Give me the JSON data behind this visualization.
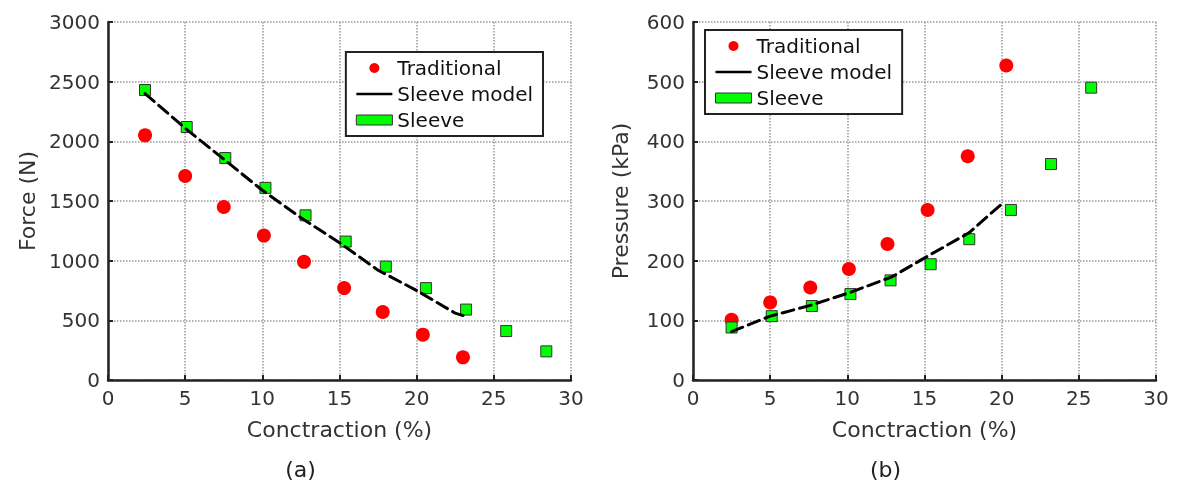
{
  "chart_data": [
    {
      "type": "scatter",
      "xlabel": "Conctraction (%)",
      "ylabel": "Force (N)",
      "annotations": [
        "(a)"
      ],
      "xlim": [
        0,
        30
      ],
      "xticks": [
        0,
        5,
        10,
        15,
        20,
        25,
        30
      ],
      "ylim": [
        0,
        3000
      ],
      "yticks": [
        0,
        500,
        1000,
        1500,
        2000,
        2500,
        3000
      ],
      "grid": true,
      "legend": "top right",
      "series": [
        {
          "name": "Traditional",
          "marker": "circle",
          "color": "#ff0000",
          "x": [
            2.4,
            5.0,
            7.5,
            10.1,
            12.7,
            15.3,
            17.8,
            20.4,
            23.0
          ],
          "values": [
            2050,
            1710,
            1450,
            1210,
            990,
            770,
            570,
            380,
            190
          ]
        },
        {
          "name": "Sleeve model",
          "type": "line",
          "marker": "none",
          "line_style": "dashed",
          "color": "#000000",
          "x": [
            2.4,
            5,
            7.5,
            10,
            12.5,
            15,
            17.5,
            20,
            22.5,
            23
          ],
          "values": [
            2400,
            2110,
            1850,
            1590,
            1360,
            1150,
            920,
            750,
            560,
            540
          ]
        },
        {
          "name": "Sleeve",
          "marker": "square",
          "color": "#00ff00",
          "x": [
            2.4,
            5.1,
            7.6,
            10.2,
            12.8,
            15.4,
            18.0,
            20.6,
            23.2,
            25.8,
            28.4
          ],
          "values": [
            2430,
            2120,
            1860,
            1610,
            1380,
            1160,
            950,
            770,
            590,
            410,
            240
          ]
        }
      ]
    },
    {
      "type": "scatter",
      "xlabel": "Conctraction (%)",
      "ylabel": "Pressure (kPa)",
      "annotations": [
        "(b)"
      ],
      "xlim": [
        0,
        30
      ],
      "xticks": [
        0,
        5,
        10,
        15,
        20,
        25,
        30
      ],
      "ylim": [
        0,
        600
      ],
      "yticks": [
        0,
        100,
        200,
        300,
        400,
        500,
        600
      ],
      "grid": true,
      "legend": "top left",
      "series": [
        {
          "name": "Traditional",
          "marker": "circle",
          "color": "#ff0000",
          "x": [
            2.5,
            5.0,
            7.6,
            10.1,
            12.6,
            15.2,
            17.8,
            20.3
          ],
          "values": [
            101,
            130,
            155,
            186,
            228,
            285,
            375,
            527
          ]
        },
        {
          "name": "Sleeve model",
          "type": "line",
          "marker": "none",
          "line_style": "dashed",
          "color": "#000000",
          "x": [
            2.5,
            5,
            7.6,
            10.1,
            12.9,
            15.1,
            17.9,
            20.0
          ],
          "values": [
            81,
            107,
            125,
            146,
            173,
            206,
            247,
            295
          ]
        },
        {
          "name": "Sleeve",
          "marker": "square",
          "color": "#00ff00",
          "x": [
            2.5,
            5.1,
            7.7,
            10.2,
            12.8,
            15.4,
            17.9,
            20.6,
            23.2,
            25.8
          ],
          "values": [
            88,
            107,
            124,
            144,
            167,
            194,
            236,
            285,
            362,
            490
          ]
        }
      ]
    }
  ]
}
